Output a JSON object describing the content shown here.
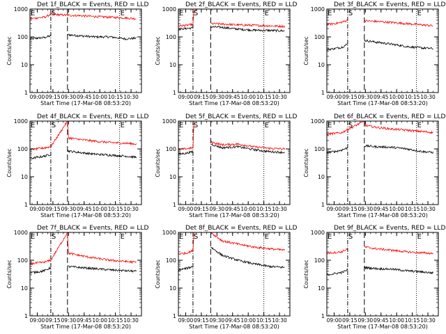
{
  "colors": {
    "events": "#000000",
    "lld": "#ff0000",
    "axes": "#000000",
    "background": "#ffffff"
  },
  "chart_data": [
    {
      "type": "line",
      "log_y": true,
      "title": "Det 1f_BLACK = Events, RED = LLD",
      "xlabel": "Start Time (17-Mar-08 08:53:20)",
      "ylabel": "Counts/sec",
      "xlim": [
        "08:53",
        "10:40"
      ],
      "ylim": [
        1,
        1000
      ],
      "xticks": [
        "09:00",
        "09:15",
        "09:30",
        "09:45",
        "10:00",
        "10:15",
        "10:30"
      ],
      "yticks": [
        "1",
        "10",
        "100",
        "1000"
      ],
      "markers": [
        {
          "label": "E",
          "time": "08:53",
          "style": "dotted"
        },
        {
          "label": "S",
          "time": "09:13",
          "style": "dashdot"
        },
        {
          "label": "",
          "time": "09:29",
          "style": "dashed"
        },
        {
          "label": "E",
          "time": "10:19",
          "style": "dotted"
        }
      ],
      "gaps": [
        [
          "09:13",
          "09:29"
        ]
      ],
      "series": [
        {
          "name": "Events",
          "color": "black",
          "x": [
            "08:53",
            "09:00",
            "09:07",
            "09:13",
            "09:29",
            "09:40",
            "09:55",
            "10:10",
            "10:25",
            "10:35"
          ],
          "values": [
            85,
            90,
            95,
            110,
            120,
            110,
            100,
            100,
            85,
            90
          ]
        },
        {
          "name": "LLD",
          "color": "red",
          "x": [
            "08:53",
            "09:00",
            "09:07",
            "09:13",
            "09:29",
            "09:40",
            "09:55",
            "10:10",
            "10:25",
            "10:35"
          ],
          "values": [
            450,
            480,
            510,
            650,
            600,
            580,
            540,
            510,
            480,
            450
          ]
        }
      ]
    },
    {
      "type": "line",
      "log_y": true,
      "title": "Det 2f_BLACK = Events, RED = LLD",
      "xlabel": "Start Time (17-Mar-08 08:53:20)",
      "ylabel": "Counts/sec",
      "xlim": [
        "08:53",
        "10:40"
      ],
      "ylim": [
        1,
        1000
      ],
      "xticks": [
        "09:00",
        "09:15",
        "09:30",
        "09:45",
        "10:00",
        "10:15",
        "10:30"
      ],
      "yticks": [
        "1",
        "10",
        "100",
        "1000"
      ],
      "markers": [
        {
          "label": "E",
          "time": "08:53",
          "style": "dotted"
        },
        {
          "label": "S",
          "time": "09:07",
          "style": "dashdot"
        },
        {
          "label": "",
          "time": "09:24",
          "style": "dashed"
        },
        {
          "label": "E",
          "time": "10:15",
          "style": "dotted"
        }
      ],
      "gaps": [
        [
          "09:07",
          "09:24"
        ]
      ],
      "series": [
        {
          "name": "Events",
          "color": "black",
          "x": [
            "08:53",
            "09:00",
            "09:07",
            "09:24",
            "09:35",
            "09:50",
            "10:05",
            "10:20",
            "10:35"
          ],
          "values": [
            190,
            200,
            210,
            230,
            220,
            190,
            175,
            170,
            165
          ]
        },
        {
          "name": "LLD",
          "color": "red",
          "x": [
            "08:53",
            "09:00",
            "09:07",
            "09:08",
            "09:12",
            "09:20",
            "09:24",
            "09:35",
            "09:50",
            "10:05",
            "10:20",
            "10:35"
          ],
          "values": [
            250,
            260,
            280,
            900,
            1000,
            1000,
            300,
            290,
            270,
            260,
            250,
            240
          ]
        }
      ]
    },
    {
      "type": "line",
      "log_y": true,
      "title": "Det 3f_BLACK = Events, RED = LLD",
      "xlabel": "Start Time (17-Mar-08 08:53:20)",
      "ylabel": "Counts/sec",
      "xlim": [
        "08:53",
        "10:40"
      ],
      "ylim": [
        1,
        1000
      ],
      "xticks": [
        "09:00",
        "09:15",
        "09:30",
        "09:45",
        "10:00",
        "10:15",
        "10:30"
      ],
      "yticks": [
        "1",
        "10",
        "100",
        "1000"
      ],
      "markers": [
        {
          "label": "E",
          "time": "08:53",
          "style": "dotted"
        },
        {
          "label": "S",
          "time": "09:13",
          "style": "dashdot"
        },
        {
          "label": "",
          "time": "09:29",
          "style": "dashed"
        },
        {
          "label": "E",
          "time": "10:19",
          "style": "dotted"
        }
      ],
      "gaps": [
        [
          "09:13",
          "09:29"
        ]
      ],
      "series": [
        {
          "name": "Events",
          "color": "black",
          "x": [
            "08:53",
            "09:00",
            "09:07",
            "09:13",
            "09:29",
            "09:40",
            "09:55",
            "10:10",
            "10:25",
            "10:35"
          ],
          "values": [
            35,
            38,
            42,
            55,
            75,
            65,
            55,
            45,
            40,
            38
          ]
        },
        {
          "name": "LLD",
          "color": "red",
          "x": [
            "08:53",
            "09:00",
            "09:07",
            "09:13",
            "09:29",
            "09:40",
            "09:55",
            "10:10",
            "10:25",
            "10:35"
          ],
          "values": [
            280,
            300,
            330,
            400,
            380,
            360,
            330,
            300,
            270,
            250
          ]
        }
      ]
    },
    {
      "type": "line",
      "log_y": true,
      "title": "Det 4f_BLACK = Events, RED = LLD",
      "xlabel": "Start Time (17-Mar-08 08:53:20)",
      "ylabel": "Counts/sec",
      "xlim": [
        "08:53",
        "10:40"
      ],
      "ylim": [
        1,
        1000
      ],
      "xticks": [
        "09:00",
        "09:15",
        "09:30",
        "09:45",
        "10:00",
        "10:15",
        "10:30"
      ],
      "yticks": [
        "1",
        "10",
        "100",
        "1000"
      ],
      "markers": [
        {
          "label": "E",
          "time": "08:53",
          "style": "dotted"
        },
        {
          "label": "S",
          "time": "09:13",
          "style": "dashdot"
        },
        {
          "label": "",
          "time": "09:29",
          "style": "dashed"
        },
        {
          "label": "E",
          "time": "10:19",
          "style": "dotted"
        }
      ],
      "gaps": [
        [
          "09:13",
          "09:29"
        ]
      ],
      "series": [
        {
          "name": "Events",
          "color": "black",
          "x": [
            "08:53",
            "09:00",
            "09:07",
            "09:13",
            "09:29",
            "09:40",
            "09:55",
            "10:10",
            "10:25",
            "10:35"
          ],
          "values": [
            45,
            50,
            55,
            65,
            85,
            75,
            65,
            60,
            55,
            50
          ]
        },
        {
          "name": "LLD",
          "color": "red",
          "x": [
            "08:53",
            "09:00",
            "09:07",
            "09:13",
            "09:29",
            "09:30",
            "09:40",
            "09:55",
            "10:10",
            "10:25",
            "10:35"
          ],
          "values": [
            95,
            100,
            110,
            120,
            1000,
            250,
            220,
            190,
            170,
            160,
            150
          ]
        }
      ]
    },
    {
      "type": "line",
      "log_y": true,
      "title": "Det 5f_BLACK = Events, RED = LLD",
      "xlabel": "Start Time (17-Mar-08 08:53:20)",
      "ylabel": "Counts/sec",
      "xlim": [
        "08:53",
        "10:40"
      ],
      "ylim": [
        1,
        1000
      ],
      "xticks": [
        "09:00",
        "09:15",
        "09:30",
        "09:45",
        "10:00",
        "10:15",
        "10:30"
      ],
      "yticks": [
        "1",
        "10",
        "100",
        "1000"
      ],
      "markers": [
        {
          "label": "E",
          "time": "08:53",
          "style": "dotted"
        },
        {
          "label": "S",
          "time": "09:07",
          "style": "dashdot"
        },
        {
          "label": "",
          "time": "09:24",
          "style": "dashed"
        },
        {
          "label": "E",
          "time": "10:15",
          "style": "dotted"
        }
      ],
      "gaps": [
        [
          "09:07",
          "09:24"
        ]
      ],
      "series": [
        {
          "name": "Events",
          "color": "black",
          "x": [
            "08:53",
            "09:00",
            "09:07",
            "09:24",
            "09:35",
            "09:50",
            "10:05",
            "10:20",
            "10:35"
          ],
          "values": [
            65,
            70,
            80,
            150,
            110,
            120,
            95,
            80,
            75
          ]
        },
        {
          "name": "LLD",
          "color": "red",
          "x": [
            "08:53",
            "09:00",
            "09:07",
            "09:08",
            "09:15",
            "09:24",
            "09:35",
            "09:50",
            "10:05",
            "10:20",
            "10:35"
          ],
          "values": [
            95,
            100,
            110,
            1000,
            1000,
            180,
            140,
            150,
            120,
            105,
            100
          ]
        }
      ]
    },
    {
      "type": "line",
      "log_y": true,
      "title": "Det 6f_BLACK = Events, RED = LLD",
      "xlabel": "Start Time (17-Mar-08 08:53:20)",
      "ylabel": "Counts/sec",
      "xlim": [
        "08:53",
        "10:40"
      ],
      "ylim": [
        1,
        1000
      ],
      "xticks": [
        "09:00",
        "09:15",
        "09:30",
        "09:45",
        "10:00",
        "10:15",
        "10:30"
      ],
      "yticks": [
        "1",
        "10",
        "100",
        "1000"
      ],
      "markers": [
        {
          "label": "E",
          "time": "08:53",
          "style": "dotted"
        },
        {
          "label": "S",
          "time": "09:13",
          "style": "dashdot"
        },
        {
          "label": "",
          "time": "09:29",
          "style": "dashed"
        },
        {
          "label": "E",
          "time": "10:19",
          "style": "dotted"
        }
      ],
      "gaps": [
        [
          "09:13",
          "09:29"
        ]
      ],
      "series": [
        {
          "name": "Events",
          "color": "black",
          "x": [
            "08:53",
            "09:00",
            "09:07",
            "09:13",
            "09:29",
            "09:40",
            "09:55",
            "10:10",
            "10:25",
            "10:35"
          ],
          "values": [
            75,
            80,
            90,
            110,
            130,
            120,
            115,
            100,
            80,
            75
          ]
        },
        {
          "name": "LLD",
          "color": "red",
          "x": [
            "08:53",
            "09:00",
            "09:07",
            "09:13",
            "09:29",
            "09:30",
            "09:40",
            "09:55",
            "10:10",
            "10:25",
            "10:35"
          ],
          "values": [
            340,
            360,
            380,
            500,
            1000,
            700,
            600,
            520,
            470,
            420,
            390
          ]
        }
      ]
    },
    {
      "type": "line",
      "log_y": true,
      "title": "Det 7f_BLACK = Events, RED = LLD",
      "xlabel": "Start Time (17-Mar-08 08:53:20)",
      "ylabel": "Counts/sec",
      "xlim": [
        "08:53",
        "10:40"
      ],
      "ylim": [
        1,
        1000
      ],
      "xticks": [
        "09:00",
        "09:15",
        "09:30",
        "09:45",
        "10:00",
        "10:15",
        "10:30"
      ],
      "yticks": [
        "1",
        "10",
        "100",
        "1000"
      ],
      "markers": [
        {
          "label": "E",
          "time": "08:53",
          "style": "dotted"
        },
        {
          "label": "S",
          "time": "09:13",
          "style": "dashdot"
        },
        {
          "label": "",
          "time": "09:29",
          "style": "dashed"
        },
        {
          "label": "E",
          "time": "10:19",
          "style": "dotted"
        }
      ],
      "gaps": [
        [
          "09:13",
          "09:29"
        ]
      ],
      "series": [
        {
          "name": "Events",
          "color": "black",
          "x": [
            "08:53",
            "09:00",
            "09:07",
            "09:13",
            "09:29",
            "09:40",
            "09:55",
            "10:10",
            "10:25",
            "10:35"
          ],
          "values": [
            35,
            38,
            42,
            55,
            60,
            55,
            50,
            45,
            42,
            40
          ]
        },
        {
          "name": "LLD",
          "color": "red",
          "x": [
            "08:53",
            "09:00",
            "09:07",
            "09:13",
            "09:29",
            "09:30",
            "09:40",
            "09:55",
            "10:10",
            "10:25",
            "10:35"
          ],
          "values": [
            75,
            80,
            85,
            100,
            1000,
            180,
            150,
            120,
            100,
            90,
            85
          ]
        }
      ]
    },
    {
      "type": "line",
      "log_y": true,
      "title": "Det 8f_BLACK = Events, RED = LLD",
      "xlabel": "Start Time (17-Mar-08 08:53:20)",
      "ylabel": "Counts/sec",
      "xlim": [
        "08:53",
        "10:40"
      ],
      "ylim": [
        1,
        1000
      ],
      "xticks": [
        "09:00",
        "09:15",
        "09:30",
        "09:45",
        "10:00",
        "10:15",
        "10:30"
      ],
      "yticks": [
        "1",
        "10",
        "100",
        "1000"
      ],
      "markers": [
        {
          "label": "E",
          "time": "08:53",
          "style": "dotted"
        },
        {
          "label": "S",
          "time": "09:07",
          "style": "dashdot"
        },
        {
          "label": "",
          "time": "09:24",
          "style": "dashed"
        },
        {
          "label": "E",
          "time": "10:15",
          "style": "dotted"
        }
      ],
      "gaps": [
        [
          "09:07",
          "09:24"
        ]
      ],
      "series": [
        {
          "name": "Events",
          "color": "black",
          "x": [
            "08:53",
            "09:00",
            "09:07",
            "09:24",
            "09:35",
            "09:50",
            "10:05",
            "10:20",
            "10:35"
          ],
          "values": [
            45,
            50,
            60,
            300,
            150,
            100,
            75,
            60,
            55
          ]
        },
        {
          "name": "LLD",
          "color": "red",
          "x": [
            "08:53",
            "09:00",
            "09:07",
            "09:08",
            "09:15",
            "09:24",
            "09:35",
            "09:50",
            "10:05",
            "10:20",
            "10:35"
          ],
          "values": [
            170,
            180,
            220,
            1000,
            1000,
            1000,
            500,
            380,
            300,
            260,
            230
          ]
        }
      ]
    },
    {
      "type": "line",
      "log_y": true,
      "title": "Det 9f_BLACK = Events, RED = LLD",
      "xlabel": "Start Time (17-Mar-08 08:53:20)",
      "ylabel": "Counts/sec",
      "xlim": [
        "08:53",
        "10:40"
      ],
      "ylim": [
        1,
        1000
      ],
      "xticks": [
        "09:00",
        "09:15",
        "09:30",
        "09:45",
        "10:00",
        "10:15",
        "10:30"
      ],
      "yticks": [
        "1",
        "10",
        "100",
        "1000"
      ],
      "markers": [
        {
          "label": "E",
          "time": "08:53",
          "style": "dotted"
        },
        {
          "label": "S",
          "time": "09:13",
          "style": "dashdot"
        },
        {
          "label": "",
          "time": "09:29",
          "style": "dashed"
        },
        {
          "label": "E",
          "time": "10:19",
          "style": "dotted"
        }
      ],
      "gaps": [
        [
          "09:13",
          "09:29"
        ]
      ],
      "series": [
        {
          "name": "Events",
          "color": "black",
          "x": [
            "08:53",
            "09:00",
            "09:07",
            "09:13",
            "09:29",
            "09:40",
            "09:55",
            "10:10",
            "10:25",
            "10:35"
          ],
          "values": [
            30,
            33,
            36,
            45,
            55,
            50,
            48,
            42,
            38,
            35
          ]
        },
        {
          "name": "LLD",
          "color": "red",
          "x": [
            "08:53",
            "09:00",
            "09:07",
            "09:13",
            "09:29",
            "09:40",
            "09:55",
            "10:10",
            "10:25",
            "10:35"
          ],
          "values": [
            180,
            190,
            200,
            260,
            300,
            260,
            230,
            200,
            185,
            175
          ]
        }
      ]
    }
  ]
}
